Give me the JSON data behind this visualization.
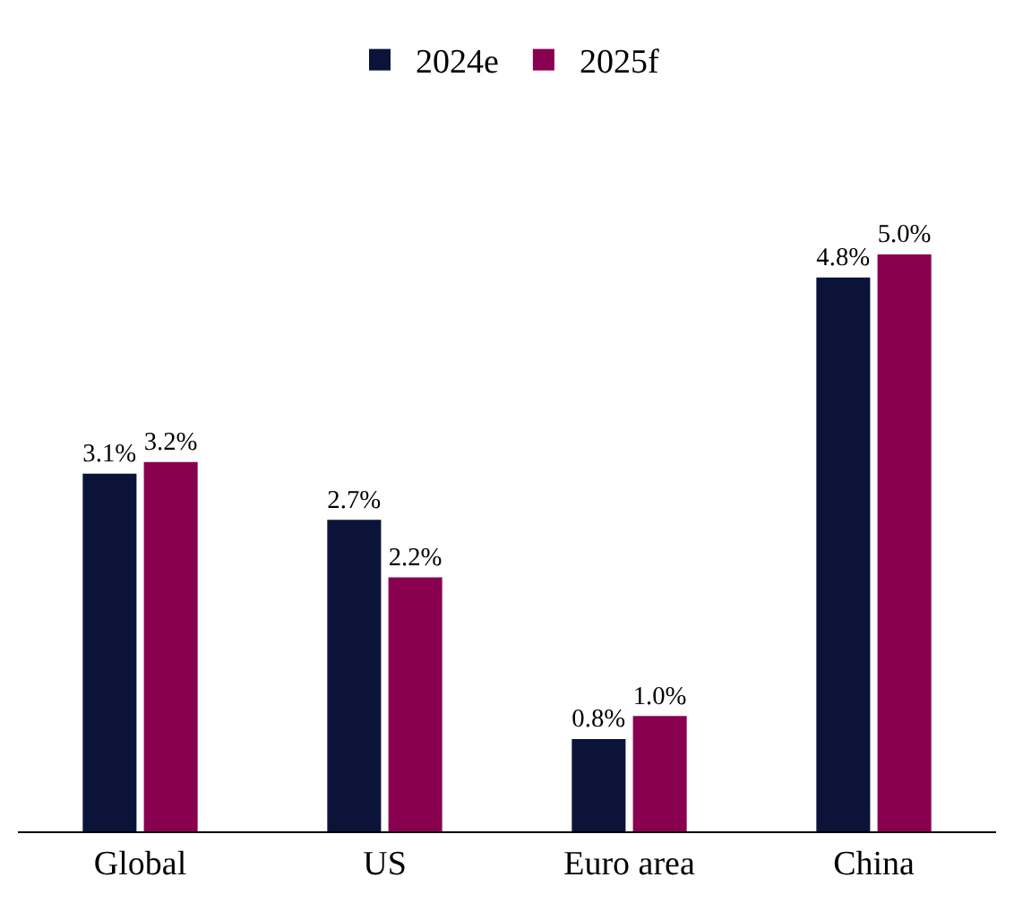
{
  "chart_data": {
    "type": "bar",
    "categories": [
      "Global",
      "US",
      "Euro area",
      "China"
    ],
    "series": [
      {
        "name": "2024e",
        "color": "#0b1438",
        "values": [
          3.1,
          2.7,
          0.8,
          4.8
        ],
        "value_labels": [
          "3.1%",
          "2.7%",
          "0.8%",
          "4.8%"
        ]
      },
      {
        "name": "2025f",
        "color": "#8a0050",
        "values": [
          3.2,
          2.2,
          1.0,
          5.0
        ],
        "value_labels": [
          "3.2%",
          "2.2%",
          "1.0%",
          "5.0%"
        ]
      }
    ],
    "legend": "top"
  }
}
